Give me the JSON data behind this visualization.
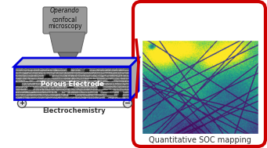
{
  "bg_color": "#ffffff",
  "left_panel": {
    "microscope_text_italic": "Operando",
    "microscope_text": "confocal\nmicroscopy",
    "arrow_up_color": "#22cc44",
    "arrow_down_color": "#9955bb",
    "electrode_border_color": "#0000dd",
    "electrode_text": "Porous Electrode",
    "echem_text": "Electrochemistry",
    "echem_plus": "+",
    "echem_minus": "−"
  },
  "right_panel": {
    "border_color": "#cc0000",
    "label_text": "Quantitative SOC mapping",
    "label_fontsize": 7.0
  },
  "red_arrow_color": "#cc0000",
  "electrode_label_fontsize": 6.0,
  "echem_fontsize": 6.0
}
